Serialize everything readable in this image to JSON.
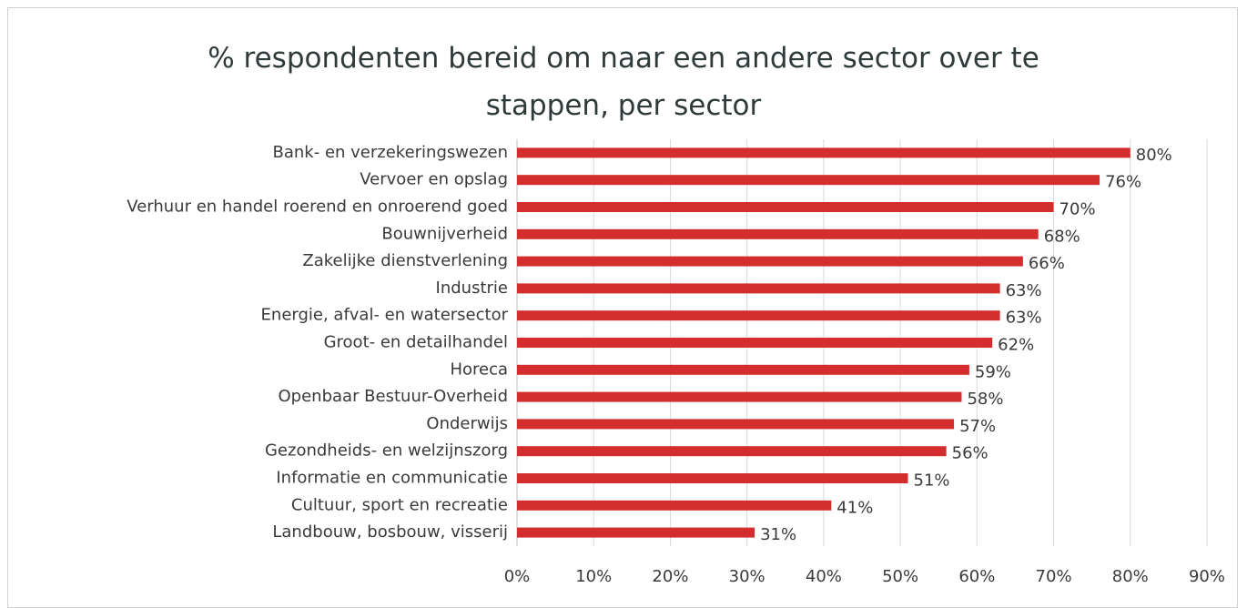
{
  "chart_data": {
    "type": "bar",
    "orientation": "horizontal",
    "title": "% respondenten bereid om naar een andere sector over te stappen, per sector",
    "categories": [
      "Bank- en verzekeringswezen",
      "Vervoer en opslag",
      "Verhuur en handel roerend en onroerend goed",
      "Bouwnijverheid",
      "Zakelijke dienstverlening",
      "Industrie",
      "Energie, afval- en watersector",
      "Groot- en detailhandel",
      "Horeca",
      "Openbaar Bestuur-Overheid",
      "Onderwijs",
      "Gezondheids- en welzijnszorg",
      "Informatie en communicatie",
      "Cultuur, sport en recreatie",
      "Landbouw, bosbouw, visserij"
    ],
    "values": [
      80,
      76,
      70,
      68,
      66,
      63,
      63,
      62,
      59,
      58,
      57,
      56,
      51,
      41,
      31
    ],
    "value_labels": [
      "80%",
      "76%",
      "70%",
      "68%",
      "66%",
      "63%",
      "63%",
      "62%",
      "59%",
      "58%",
      "57%",
      "56%",
      "51%",
      "41%",
      "31%"
    ],
    "color": "#d42d2d",
    "xlim": [
      0,
      90
    ],
    "xticks": [
      {
        "value": 0,
        "label": "0%"
      },
      {
        "value": 10,
        "label": "10%"
      },
      {
        "value": 20,
        "label": "20%"
      },
      {
        "value": 30,
        "label": "30%"
      },
      {
        "value": 40,
        "label": "40%"
      },
      {
        "value": 50,
        "label": "50%"
      },
      {
        "value": 60,
        "label": "60%"
      },
      {
        "value": 70,
        "label": "70%"
      },
      {
        "value": 80,
        "label": "80%"
      },
      {
        "value": 90,
        "label": "90%"
      }
    ],
    "grid": true
  }
}
